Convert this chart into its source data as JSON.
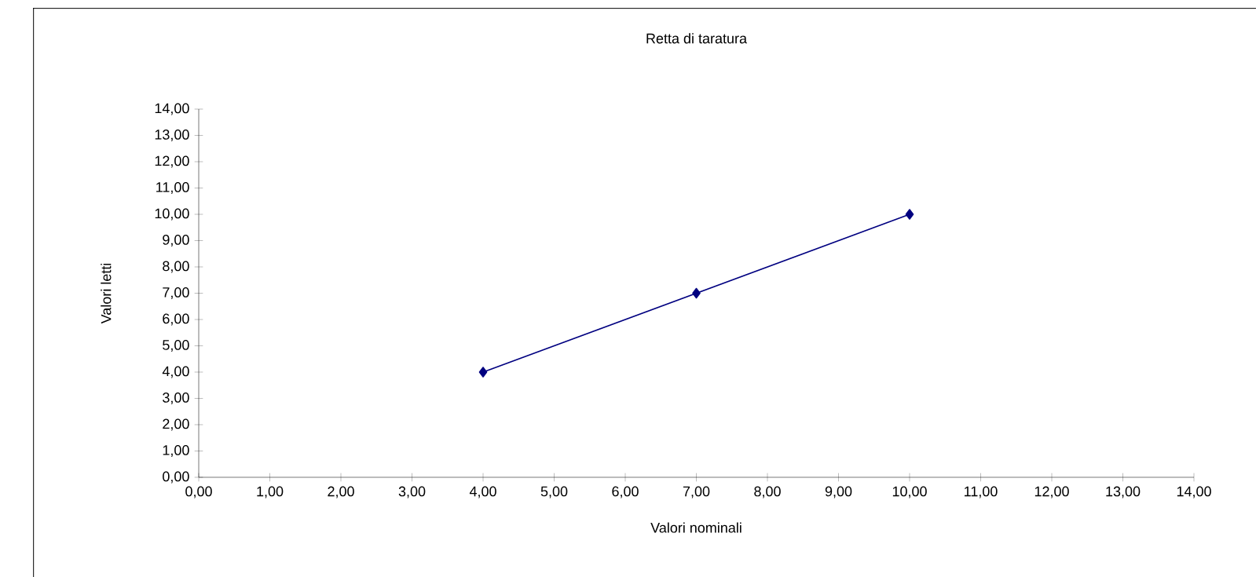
{
  "chart_data": {
    "type": "line",
    "title": "Retta di taratura",
    "xlabel": "Valori nominali",
    "ylabel": "Valori letti",
    "x": [
      4,
      7,
      10
    ],
    "series": [
      {
        "color": "#000080",
        "values": [
          4,
          7,
          10
        ]
      }
    ],
    "marker": "diamond",
    "line_style": "solid",
    "grid": false,
    "xlim": [
      0,
      14
    ],
    "ylim": [
      0,
      14
    ],
    "xticks": [
      {
        "value": 0,
        "label": "0,00"
      },
      {
        "value": 1,
        "label": "1,00"
      },
      {
        "value": 2,
        "label": "2,00"
      },
      {
        "value": 3,
        "label": "3,00"
      },
      {
        "value": 4,
        "label": "4,00"
      },
      {
        "value": 5,
        "label": "5,00"
      },
      {
        "value": 6,
        "label": "6,00"
      },
      {
        "value": 7,
        "label": "7,00"
      },
      {
        "value": 8,
        "label": "8,00"
      },
      {
        "value": 9,
        "label": "9,00"
      },
      {
        "value": 10,
        "label": "10,00"
      },
      {
        "value": 11,
        "label": "11,00"
      },
      {
        "value": 12,
        "label": "12,00"
      },
      {
        "value": 13,
        "label": "13,00"
      },
      {
        "value": 14,
        "label": "14,00"
      }
    ],
    "yticks": [
      {
        "value": 0,
        "label": "0,00"
      },
      {
        "value": 1,
        "label": "1,00"
      },
      {
        "value": 2,
        "label": "2,00"
      },
      {
        "value": 3,
        "label": "3,00"
      },
      {
        "value": 4,
        "label": "4,00"
      },
      {
        "value": 5,
        "label": "5,00"
      },
      {
        "value": 6,
        "label": "6,00"
      },
      {
        "value": 7,
        "label": "7,00"
      },
      {
        "value": 8,
        "label": "8,00"
      },
      {
        "value": 9,
        "label": "9,00"
      },
      {
        "value": 10,
        "label": "10,00"
      },
      {
        "value": 11,
        "label": "11,00"
      },
      {
        "value": 12,
        "label": "12,00"
      },
      {
        "value": 13,
        "label": "13,00"
      },
      {
        "value": 14,
        "label": "14,00"
      }
    ]
  }
}
